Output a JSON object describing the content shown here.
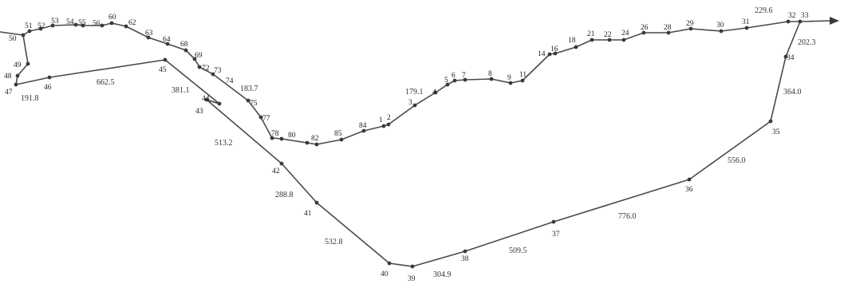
{
  "colors": {
    "line": "#4a4a4a",
    "point": "#3a3a3a",
    "text": "#1e1e1e",
    "background": "#ffffff"
  },
  "route_order": [
    "33",
    "32",
    "31",
    "30",
    "29",
    "28",
    "26",
    "24",
    "22",
    "21",
    "18",
    "16",
    "14",
    "11",
    "9",
    "8",
    "7",
    "6",
    "5",
    "4",
    "3",
    "2",
    "1",
    "84",
    "85",
    "82",
    "80",
    "78",
    "77",
    "75",
    "74",
    "73",
    "72",
    "69",
    "68",
    "64",
    "63",
    "62",
    "60",
    "56",
    "55",
    "54",
    "53",
    "52",
    "51",
    "50",
    "49",
    "48",
    "47",
    "46",
    "45",
    "44",
    "43",
    "42",
    "41",
    "40",
    "39",
    "38",
    "37",
    "36",
    "35",
    "34",
    "33"
  ],
  "station_labels": [
    "1",
    "2",
    "3",
    "4",
    "5",
    "6",
    "7",
    "8",
    "9",
    "11",
    "14",
    "16",
    "18",
    "21",
    "22",
    "24",
    "26",
    "28",
    "29",
    "30",
    "31",
    "32",
    "33",
    "34",
    "35",
    "36",
    "37",
    "38",
    "39",
    "40",
    "41",
    "42",
    "43",
    "44",
    "45",
    "46",
    "47",
    "48",
    "49",
    "50",
    "51",
    "52",
    "53",
    "54",
    "55",
    "56",
    "60",
    "62",
    "63",
    "64",
    "68",
    "69",
    "72",
    "73",
    "74",
    "75",
    "77",
    "78",
    "80",
    "82",
    "84",
    "85"
  ],
  "distance_labels": [
    "229.6",
    "202.3",
    "364.0",
    "556.0",
    "776.0",
    "509.5",
    "304.9",
    "532.8",
    "288.8",
    "513.2",
    "381.1",
    "662.5",
    "191.8",
    "183.7",
    "179.1"
  ]
}
